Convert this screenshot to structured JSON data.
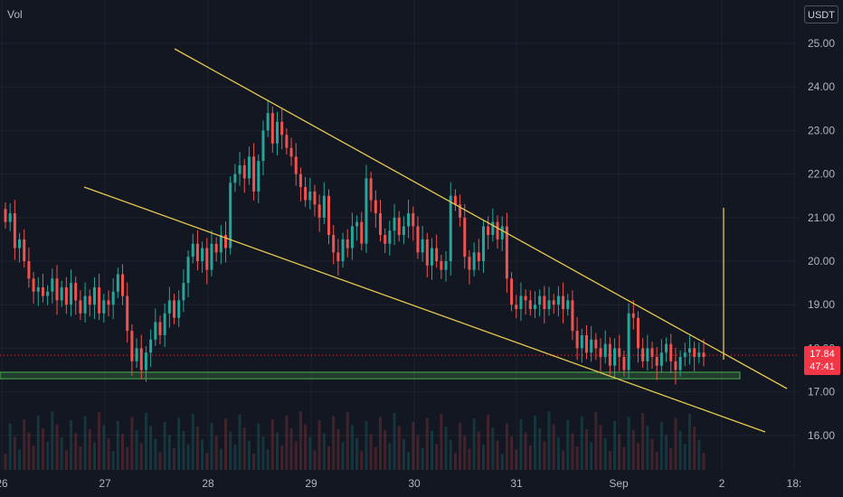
{
  "header": {
    "volume_label": "Vol",
    "currency": "USDT"
  },
  "last_price": {
    "value": "17.84",
    "countdown": "47:41",
    "color": "#f23645"
  },
  "colors": {
    "background": "#131722",
    "up": "#26a69a",
    "down": "#ef5350",
    "trendline": "#e6c84f",
    "support_zone": "#4caf50",
    "grid": "#1e222d"
  },
  "chart_data": {
    "type": "candlestick",
    "xlabel": "",
    "ylabel": "",
    "x_ticks": [
      "26",
      "27",
      "28",
      "29",
      "30",
      "31",
      "Sep",
      "2",
      "18:"
    ],
    "y_ticks": [
      "16.00",
      "17.00",
      "18.00",
      "19.00",
      "20.00",
      "21.00",
      "22.00",
      "23.00",
      "24.00",
      "25.00"
    ],
    "ylim": [
      15.5,
      25.6
    ],
    "candle_closes": [
      20.9,
      21.1,
      20.3,
      20.5,
      20.0,
      19.6,
      19.3,
      19.4,
      19.2,
      19.3,
      19.6,
      19.1,
      19.4,
      19.0,
      19.5,
      19.1,
      18.8,
      19.2,
      19.0,
      19.4,
      18.8,
      19.1,
      19.0,
      19.3,
      19.7,
      19.2,
      18.4,
      17.7,
      18.0,
      17.5,
      17.9,
      18.2,
      18.6,
      18.3,
      18.8,
      19.1,
      18.7,
      19.1,
      19.5,
      20.1,
      20.4,
      20.0,
      20.3,
      19.8,
      20.4,
      20.2,
      20.6,
      20.3,
      21.8,
      22.0,
      22.2,
      21.9,
      22.4,
      21.6,
      22.3,
      23.0,
      23.4,
      22.7,
      23.2,
      22.9,
      22.6,
      22.4,
      22.0,
      21.7,
      21.4,
      21.6,
      21.3,
      21.0,
      21.5,
      20.6,
      20.2,
      20.0,
      20.5,
      20.3,
      20.8,
      20.9,
      20.4,
      21.9,
      21.4,
      21.1,
      20.6,
      20.4,
      20.7,
      21.0,
      20.6,
      20.8,
      21.1,
      20.8,
      20.2,
      20.5,
      19.9,
      20.3,
      20.0,
      19.8,
      20.0,
      21.5,
      21.3,
      21.0,
      20.1,
      19.8,
      20.2,
      20.0,
      20.8,
      20.6,
      20.9,
      20.5,
      20.8,
      19.6,
      19.0,
      18.9,
      19.2,
      19.1,
      18.9,
      19.0,
      19.2,
      18.9,
      19.1,
      19.0,
      19.2,
      18.9,
      19.1,
      18.4,
      18.0,
      18.3,
      17.9,
      18.2,
      18.0,
      17.8,
      18.1,
      17.6,
      18.0,
      17.8,
      17.5,
      18.8,
      18.7,
      18.0,
      17.7,
      18.0,
      17.8,
      17.6,
      17.9,
      18.1,
      17.7,
      17.5,
      17.8,
      17.9,
      18.0,
      17.8,
      17.9,
      17.8
    ],
    "horizontal_lines": [
      {
        "label": "last price",
        "y": 17.84
      }
    ],
    "support_zone": {
      "y_from": 17.45,
      "y_to": 17.3
    }
  }
}
